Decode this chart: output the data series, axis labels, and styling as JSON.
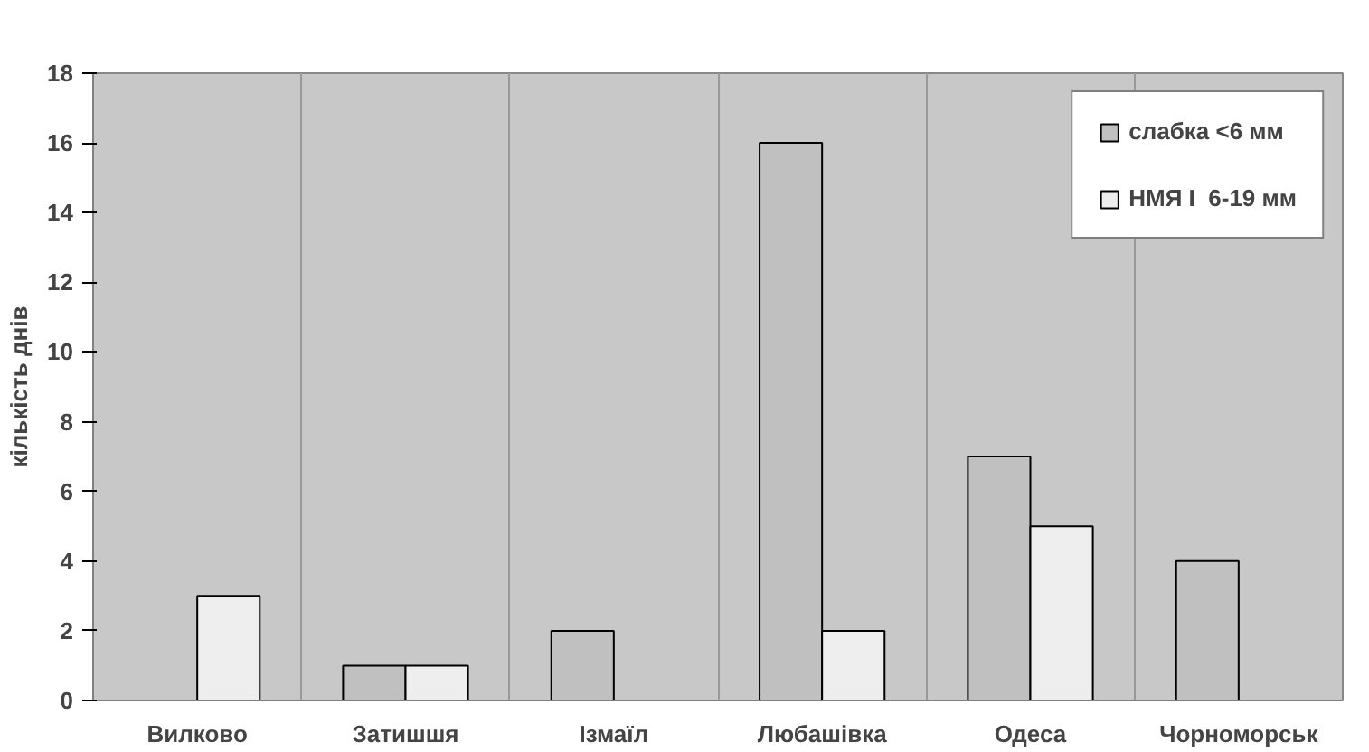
{
  "chart_data": {
    "type": "bar",
    "ylabel": "кількість днів",
    "categories": [
      "Вилково",
      "Затишшя",
      "Ізмаїл",
      "Любашівка",
      "Одеса",
      "Чорноморськ"
    ],
    "series": [
      {
        "name": "слабка <6 мм",
        "color": "#c0c0c0",
        "values": [
          null,
          1,
          2,
          16,
          7,
          4
        ]
      },
      {
        "name": "НМЯ I  6-19 мм",
        "color": "#eeeeee",
        "values": [
          3,
          1,
          null,
          2,
          5,
          null
        ]
      }
    ],
    "ylim": [
      0,
      18
    ],
    "yticks": [
      0,
      2,
      4,
      6,
      8,
      10,
      12,
      14,
      16,
      18
    ],
    "grid": "x",
    "legend": "top right"
  }
}
